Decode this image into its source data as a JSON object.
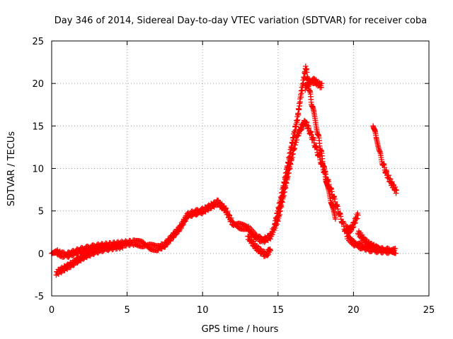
{
  "chart_data": {
    "type": "scatter",
    "title": "Day 346 of 2014, Sidereal Day-to-day VTEC variation (SDTVAR) for receiver coba",
    "xlabel": "GPS time / hours",
    "ylabel": "SDTVAR / TECUs",
    "xlim": [
      0,
      25
    ],
    "ylim": [
      -5,
      25
    ],
    "xticks": [
      0,
      5,
      10,
      15,
      20,
      25
    ],
    "yticks": [
      -5,
      0,
      5,
      10,
      15,
      20,
      25
    ],
    "grid": true,
    "marker": "+",
    "color": "#ff0000",
    "series": [
      {
        "name": "main",
        "x": [
          0.0,
          0.3,
          0.6,
          1.0,
          1.5,
          2.0,
          2.5,
          3.0,
          3.5,
          4.0,
          4.5,
          5.0,
          5.5,
          6.0,
          6.5,
          7.0,
          7.5,
          8.0,
          8.5,
          9.0,
          9.5,
          10.0,
          10.5,
          11.0,
          11.5,
          12.0,
          12.5,
          13.0,
          13.5,
          14.0,
          14.5,
          15.0,
          15.5,
          16.0,
          16.3,
          16.6,
          16.8,
          17.0,
          17.3,
          17.6,
          18.0,
          18.4,
          18.8,
          19.2,
          19.6,
          20.0,
          20.4,
          20.8,
          21.2,
          21.6,
          22.0,
          22.5,
          22.8
        ],
        "y": [
          0.0,
          0.2,
          -0.1,
          -0.2,
          0.1,
          0.4,
          0.6,
          0.8,
          0.9,
          1.0,
          1.1,
          1.2,
          1.3,
          1.1,
          0.8,
          0.6,
          1.0,
          2.0,
          3.0,
          4.5,
          4.8,
          5.0,
          5.5,
          6.0,
          5.2,
          3.5,
          3.2,
          3.0,
          2.0,
          1.5,
          2.0,
          4.0,
          8.0,
          12.0,
          14.0,
          15.0,
          15.5,
          14.8,
          13.5,
          12.0,
          10.0,
          8.0,
          6.0,
          4.0,
          2.0,
          1.2,
          0.9,
          0.6,
          0.5,
          0.4,
          0.35,
          0.3,
          0.3
        ]
      },
      {
        "name": "upper-branch",
        "x": [
          14.8,
          15.2,
          15.6,
          16.0,
          16.3,
          16.5,
          16.7,
          16.85,
          17.0,
          17.3,
          17.6,
          17.9,
          18.2,
          18.5,
          18.8
        ],
        "y": [
          3.5,
          6.5,
          10.0,
          13.5,
          16.0,
          18.5,
          20.5,
          22.0,
          20.0,
          17.0,
          14.5,
          11.5,
          8.5,
          6.0,
          4.0
        ]
      },
      {
        "name": "upper-tail",
        "x": [
          16.8,
          17.1,
          17.4,
          17.7,
          17.9
        ],
        "y": [
          19.5,
          20.2,
          20.3,
          19.9,
          19.7
        ]
      },
      {
        "name": "lower-branch",
        "x": [
          0.3,
          0.8,
          1.3,
          1.8,
          2.3,
          2.8,
          3.3,
          3.8,
          4.3,
          4.7
        ],
        "y": [
          -2.3,
          -1.8,
          -1.3,
          -0.7,
          -0.2,
          0.2,
          0.5,
          0.7,
          0.8,
          0.9
        ]
      },
      {
        "name": "spike-20",
        "x": [
          19.5,
          19.7,
          19.9,
          20.1,
          20.3
        ],
        "y": [
          3.0,
          2.7,
          3.0,
          3.8,
          4.6
        ]
      },
      {
        "name": "late-decay",
        "x": [
          20.3,
          20.6,
          20.9,
          21.2,
          21.5,
          21.8,
          22.1,
          22.4,
          22.7
        ],
        "y": [
          2.5,
          1.8,
          1.2,
          0.9,
          0.6,
          0.45,
          0.35,
          0.3,
          0.25
        ]
      },
      {
        "name": "late-segment",
        "x": [
          21.3,
          21.5,
          21.7,
          21.9,
          22.1,
          22.3,
          22.5,
          22.7,
          22.85
        ],
        "y": [
          15.3,
          13.5,
          12.0,
          10.8,
          9.8,
          9.0,
          8.3,
          7.7,
          7.3
        ]
      },
      {
        "name": "dip-14",
        "x": [
          13.0,
          13.4,
          13.8,
          14.2,
          14.5
        ],
        "y": [
          2.0,
          1.0,
          0.3,
          -0.2,
          0.5
        ]
      }
    ]
  }
}
